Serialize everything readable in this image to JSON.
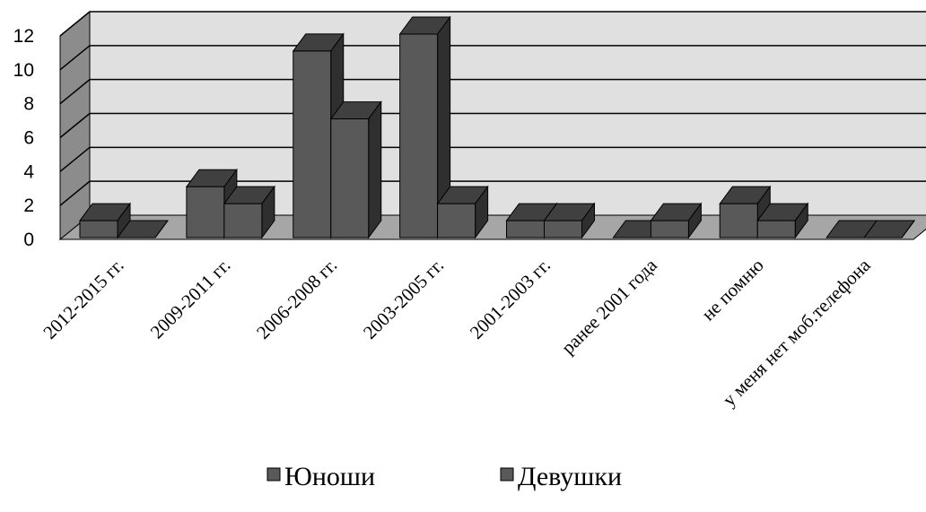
{
  "chart_data": {
    "type": "bar",
    "categories": [
      "2012-2015 гг.",
      "2009-2011 гг.",
      "2006-2008 гг.",
      "2003-2005 гг.",
      "2001-2003 гг.",
      "ранее 2001 года",
      "не помню",
      "у меня нет моб.телефона"
    ],
    "series": [
      {
        "name": "Юноши",
        "values": [
          1,
          3,
          11,
          12,
          1,
          0,
          2,
          0
        ]
      },
      {
        "name": "Девушки",
        "values": [
          0,
          2,
          7,
          2,
          1,
          1,
          1,
          0
        ]
      }
    ],
    "y_ticks": [
      "0",
      "2",
      "4",
      "6",
      "8",
      "10",
      "12"
    ],
    "ylim": [
      0,
      12
    ],
    "grid": true,
    "three_d": true,
    "legend_position": "bottom",
    "colors": {
      "bar_front": "#595959",
      "bar_side": "#2f2f2f",
      "bar_top": "#404040",
      "wall": "#e0e0e0",
      "side_wall": "#8c8c8c",
      "floor": "#a6a6a6",
      "gridline": "#000000"
    }
  }
}
